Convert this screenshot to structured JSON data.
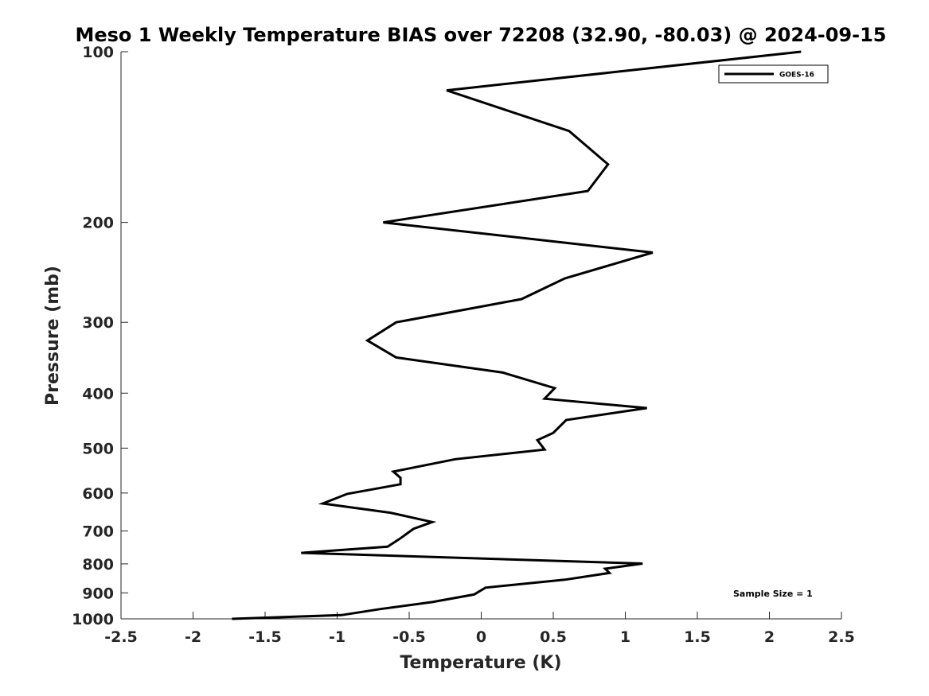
{
  "chart_data": {
    "type": "line",
    "title": "Meso 1 Weekly Temperature BIAS over 72208 (32.90, -80.03) @ 2024-09-15",
    "xlabel": "Temperature (K)",
    "ylabel": "Pressure (mb)",
    "xlim": [
      -2.5,
      2.5
    ],
    "ylim": [
      100,
      1000
    ],
    "y_scale": "log",
    "y_reversed": true,
    "x_ticks": [
      "-2.5",
      "-2",
      "-1.5",
      "-1",
      "-0.5",
      "0",
      "0.5",
      "1",
      "1.5",
      "2",
      "2.5"
    ],
    "x_tick_values": [
      -2.5,
      -2,
      -1.5,
      -1,
      -0.5,
      0,
      0.5,
      1,
      1.5,
      2,
      2.5
    ],
    "y_ticks": [
      "100",
      "200",
      "300",
      "400",
      "500",
      "600",
      "700",
      "800",
      "900",
      "1000"
    ],
    "y_tick_values": [
      100,
      200,
      300,
      400,
      500,
      600,
      700,
      800,
      900,
      1000
    ],
    "grid": false,
    "legend_position": "top-right",
    "annotation": "Sample Size = 1",
    "series": [
      {
        "name": "GOES-16",
        "color": "#000000",
        "x": [
          2.22,
          -0.24,
          0.61,
          0.88,
          0.74,
          -0.68,
          1.19,
          0.58,
          0.28,
          -0.59,
          -0.79,
          -0.59,
          0.15,
          0.51,
          0.44,
          1.15,
          0.59,
          0.5,
          0.39,
          0.44,
          -0.18,
          -0.61,
          -0.56,
          -0.56,
          -0.93,
          -1.1,
          -0.63,
          -0.34,
          -0.47,
          -0.56,
          -0.65,
          -1.25,
          1.12,
          0.86,
          0.89,
          0.58,
          0.03,
          -0.05,
          -0.34,
          -0.7,
          -0.97,
          -1.73
        ],
        "y": [
          100,
          117,
          138,
          158,
          176,
          200,
          226,
          251,
          273,
          300,
          323,
          346,
          368,
          392,
          409,
          425,
          446,
          470,
          484,
          503,
          523,
          550,
          564,
          579,
          602,
          626,
          650,
          675,
          694,
          721,
          746,
          765,
          799,
          816,
          830,
          853,
          881,
          906,
          934,
          961,
          985,
          1000
        ]
      }
    ]
  }
}
